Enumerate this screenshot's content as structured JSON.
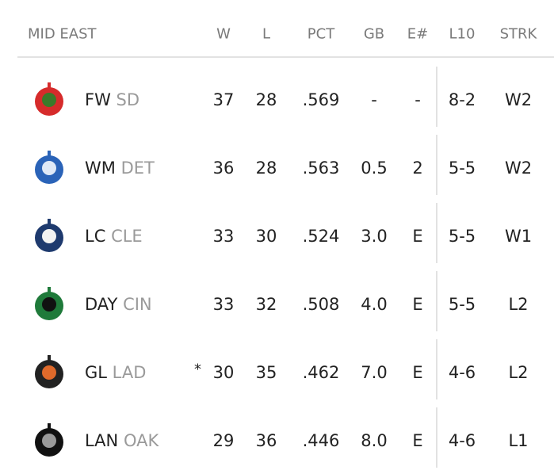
{
  "header": {
    "division": "MID EAST",
    "columns": [
      "W",
      "L",
      "PCT",
      "GB",
      "E#",
      "L10",
      "STRK"
    ]
  },
  "rows": [
    {
      "team": "FW",
      "affiliate": "SD",
      "cells": [
        "37",
        "28",
        ".569",
        "-",
        "-",
        "8-2",
        "W2"
      ]
    },
    {
      "team": "WM",
      "affiliate": "DET",
      "cells": [
        "36",
        "28",
        ".563",
        "0.5",
        "2",
        "5-5",
        "W2"
      ]
    },
    {
      "team": "LC",
      "affiliate": "CLE",
      "cells": [
        "33",
        "30",
        ".524",
        "3.0",
        "E",
        "5-5",
        "W1"
      ]
    },
    {
      "team": "DAY",
      "affiliate": "CIN",
      "cells": [
        "33",
        "32",
        ".508",
        "4.0",
        "E",
        "5-5",
        "L2"
      ]
    },
    {
      "team": "GL",
      "affiliate": "LAD",
      "marker": "*",
      "cells": [
        "30",
        "35",
        ".462",
        "7.0",
        "E",
        "4-6",
        "L2"
      ]
    },
    {
      "team": "LAN",
      "affiliate": "OAK",
      "cells": [
        "29",
        "36",
        ".446",
        "8.0",
        "E",
        "4-6",
        "L1"
      ]
    }
  ]
}
